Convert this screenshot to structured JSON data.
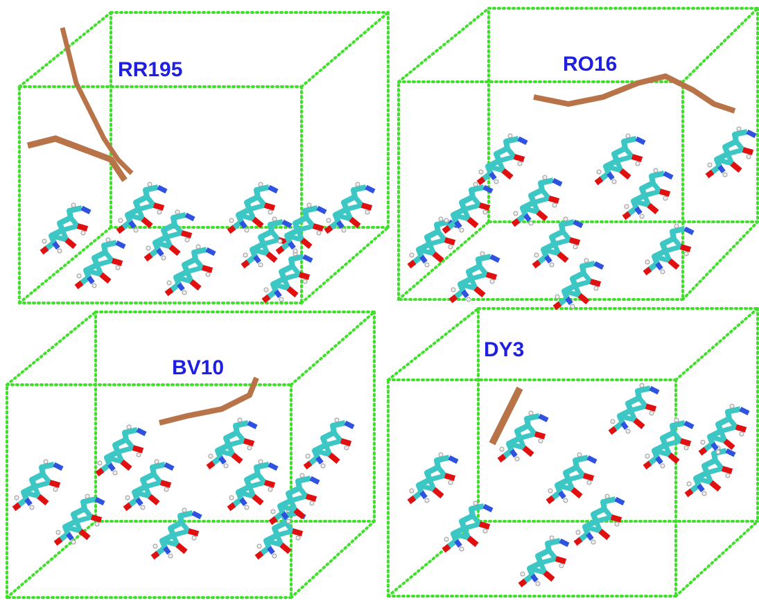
{
  "panels": [
    {
      "label": "RR195"
    },
    {
      "label": "RO16"
    },
    {
      "label": "BV10"
    },
    {
      "label": "DY3"
    }
  ]
}
